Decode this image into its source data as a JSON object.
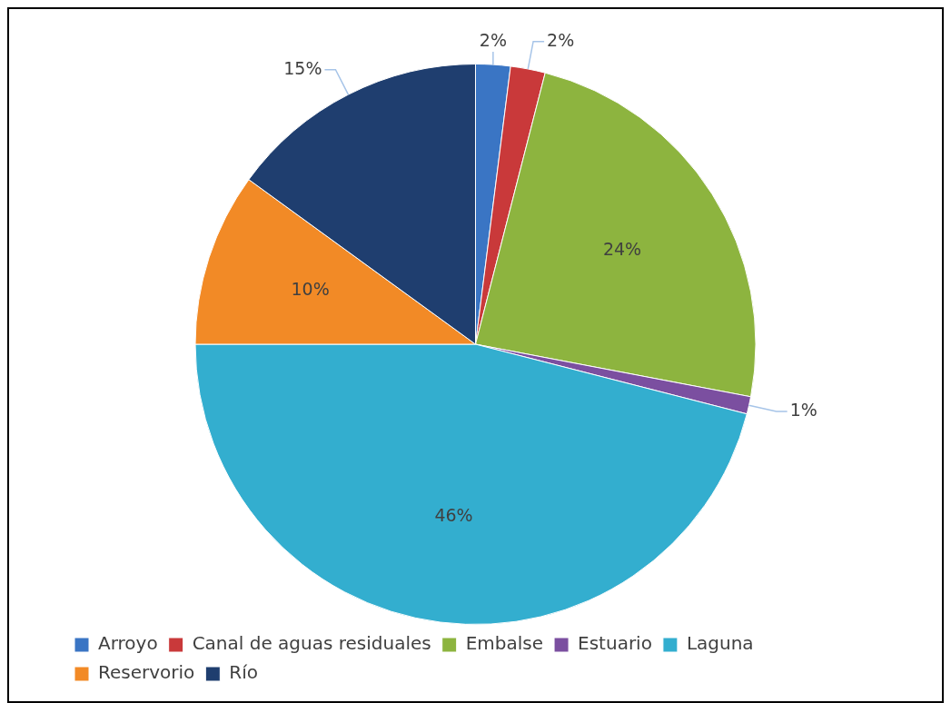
{
  "chart_data": {
    "type": "pie",
    "categories": [
      "Arroyo",
      "Canal de aguas residuales",
      "Embalse",
      "Estuario",
      "Laguna",
      "Reservorio",
      "Río"
    ],
    "values": [
      2,
      2,
      24,
      1,
      46,
      10,
      15
    ],
    "colors": [
      "#3a75c4",
      "#c9393a",
      "#8db43f",
      "#7b4fa0",
      "#33aecf",
      "#f28a26",
      "#1f3e6f"
    ],
    "value_labels": [
      "2%",
      "2%",
      "24%",
      "1%",
      "46%",
      "10%",
      "15%"
    ],
    "legend": "bottom"
  }
}
